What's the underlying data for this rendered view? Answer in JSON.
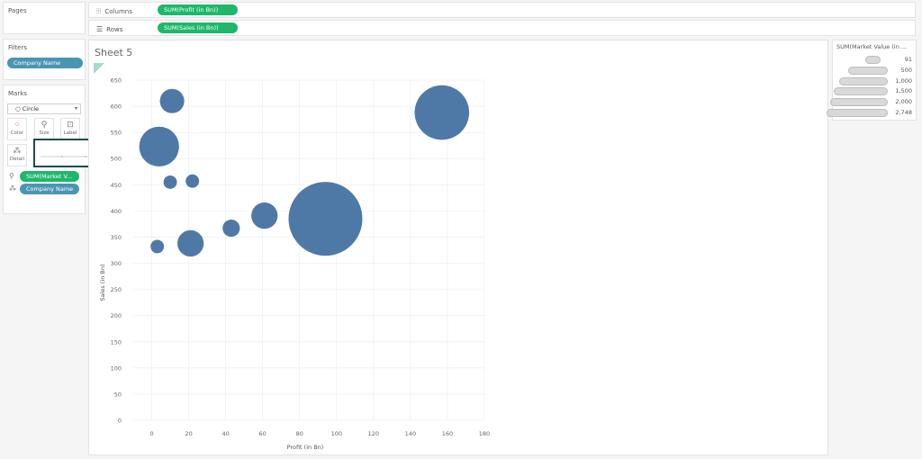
{
  "pages_label": "Pages",
  "filters": {
    "title": "Filters",
    "pill": "Company Name"
  },
  "marks": {
    "title": "Marks",
    "mark_type": "Circle",
    "buttons": {
      "color": "Color",
      "size": "Size",
      "label": "Label",
      "detail": "Detail"
    },
    "fields": [
      "SUM(Market V...",
      "Company Name"
    ]
  },
  "shelves": {
    "columns_label": "Columns",
    "columns_pill": "SUM(Profit (in Bn))",
    "rows_label": "Rows",
    "rows_pill": "SUM(Sales (in Bn))"
  },
  "sheet_title": "Sheet 5",
  "legend": {
    "title": "SUM(Market Value (in ...",
    "values": [
      "91",
      "500",
      "1,000",
      "1,500",
      "2,000",
      "2,748"
    ]
  },
  "colors": {
    "bubble": "#4e79a7",
    "pill_green": "#1eb76b",
    "pill_blue": "#4b95b2"
  },
  "chart_data": {
    "type": "scatter",
    "xlabel": "Profit (in Bn)",
    "ylabel": "Sales (in Bn)",
    "xlim": [
      -10,
      180
    ],
    "ylim": [
      0,
      650
    ],
    "xticks": [
      "0",
      "20",
      "40",
      "60",
      "80",
      "100",
      "120",
      "140",
      "160",
      "180"
    ],
    "yticks": [
      "0",
      "50",
      "100",
      "150",
      "200",
      "250",
      "300",
      "350",
      "400",
      "450",
      "500",
      "550",
      "600",
      "650"
    ],
    "size_field": "SUM(Market Value (in ...",
    "points": [
      {
        "x": 11,
        "y": 610,
        "size": 300
      },
      {
        "x": 157,
        "y": 588,
        "size": 1500
      },
      {
        "x": 4,
        "y": 523,
        "size": 800
      },
      {
        "x": 10,
        "y": 455,
        "size": 91
      },
      {
        "x": 22,
        "y": 457,
        "size": 91
      },
      {
        "x": 61,
        "y": 391,
        "size": 350
      },
      {
        "x": 94,
        "y": 385,
        "size": 2748
      },
      {
        "x": 43,
        "y": 367,
        "size": 150
      },
      {
        "x": 21,
        "y": 338,
        "size": 350
      },
      {
        "x": 3,
        "y": 332,
        "size": 91
      }
    ]
  }
}
